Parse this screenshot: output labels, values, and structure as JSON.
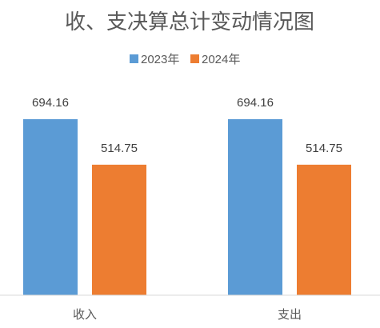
{
  "chart_data": {
    "type": "bar",
    "title": "收、支决算总计变动情况图",
    "categories": [
      "收入",
      "支出"
    ],
    "series": [
      {
        "name": "2023年",
        "color": "#5b9bd5",
        "values": [
          694.16,
          694.16
        ]
      },
      {
        "name": "2024年",
        "color": "#ed7d31",
        "values": [
          514.75,
          514.75
        ]
      }
    ],
    "data_labels": [
      [
        "694.16",
        "694.16"
      ],
      [
        "514.75",
        "514.75"
      ]
    ],
    "ylim": [
      0,
      750
    ],
    "grid": false,
    "legend_position": "top"
  }
}
